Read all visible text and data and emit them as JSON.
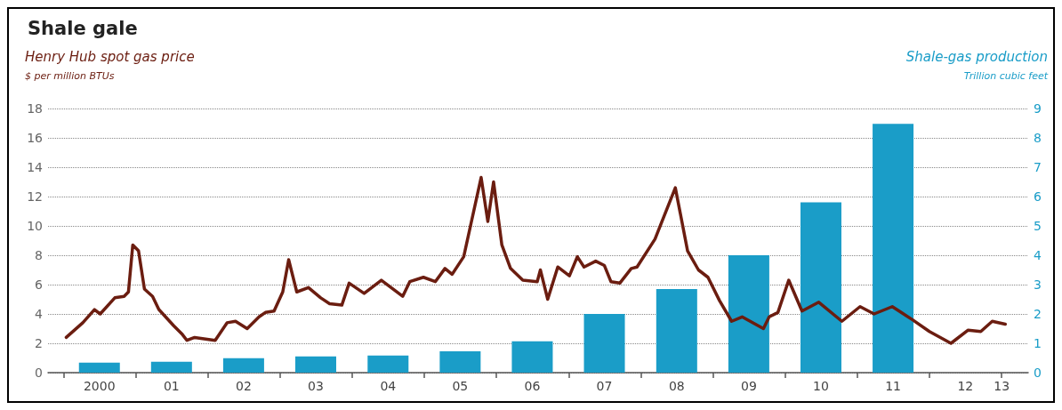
{
  "chart_data": {
    "type": "bar",
    "title": "Shale gale",
    "ylabel": "$ per million BTUs",
    "y2label": "Trillion cubic feet",
    "xlim": [
      "1999-10-15",
      "2013-05-15"
    ],
    "xticks": [
      {
        "value": "2000-01-01",
        "label": null
      },
      {
        "value": "2001-01-01",
        "label": null
      },
      {
        "value": "2002-01-01",
        "label": null
      },
      {
        "value": "2003-01-01",
        "label": null
      },
      {
        "value": "2004-01-01",
        "label": null
      },
      {
        "value": "2005-01-01",
        "label": null
      },
      {
        "value": "2006-01-01",
        "label": null
      },
      {
        "value": "2007-01-01",
        "label": null
      },
      {
        "value": "2008-01-01",
        "label": null
      },
      {
        "value": "2009-01-01",
        "label": null
      },
      {
        "value": "2010-01-01",
        "label": null
      },
      {
        "value": "2011-01-01",
        "label": null
      },
      {
        "value": "2012-01-01",
        "label": null
      },
      {
        "value": "2000-07-01",
        "label": "2000"
      },
      {
        "value": "2001-07-01",
        "label": "01"
      },
      {
        "value": "2002-07-01",
        "label": "02"
      },
      {
        "value": "2003-07-01",
        "label": "03"
      },
      {
        "value": "2004-07-01",
        "label": "04"
      },
      {
        "value": "2005-07-01",
        "label": "05"
      },
      {
        "value": "2006-07-01",
        "label": "06"
      },
      {
        "value": "2007-07-01",
        "label": "07"
      },
      {
        "value": "2008-07-01",
        "label": "08"
      },
      {
        "value": "2009-07-01",
        "label": "09"
      },
      {
        "value": "2010-07-01",
        "label": "10"
      },
      {
        "value": "2011-07-01",
        "label": "11"
      },
      {
        "value": "2012-07-01",
        "label": "12"
      },
      {
        "value": "2013-01-01",
        "label": "13"
      }
    ],
    "ylim": [
      0,
      18
    ],
    "yticks": [
      0,
      2,
      4,
      6,
      8,
      10,
      12,
      14,
      16,
      18
    ],
    "y2lim": [
      0,
      9
    ],
    "y2ticks": [
      0,
      1,
      2,
      3,
      4,
      5,
      6,
      7,
      8,
      9
    ],
    "grid": "y",
    "legend": false,
    "series": [
      {
        "name": "Shale-gas production",
        "axis": "y2",
        "color": "#1a9dc8",
        "x": [
          "2000-07-01",
          "2001-07-01",
          "2002-07-01",
          "2003-07-01",
          "2004-07-01",
          "2005-07-01",
          "2006-07-01",
          "2007-07-01",
          "2008-07-01",
          "2009-07-01",
          "2010-07-01",
          "2011-07-01"
        ],
        "values": [
          0.34,
          0.37,
          0.49,
          0.55,
          0.58,
          0.73,
          1.07,
          2.0,
          2.85,
          4.0,
          5.8,
          8.48
        ]
      },
      {
        "name": "Henry Hub spot gas price",
        "type": "line",
        "marker": "none",
        "line_style": "solid",
        "color": "#6b1d10",
        "x": [
          "2000-01-15",
          "2000-04-08",
          "2000-06-06",
          "2000-07-05",
          "2000-09-17",
          "2000-11-03",
          "2000-11-25",
          "2000-12-17",
          "2001-01-15",
          "2001-02-14",
          "2001-03-27",
          "2001-04-28",
          "2001-07-12",
          "2001-08-25",
          "2001-09-17",
          "2001-10-26",
          "2002-02-07",
          "2002-04-08",
          "2002-05-21",
          "2002-07-19",
          "2002-09-17",
          "2002-10-19",
          "2002-12-02",
          "2003-01-15",
          "2003-02-14",
          "2003-03-27",
          "2003-05-25",
          "2003-07-26",
          "2003-09-09",
          "2003-11-10",
          "2003-12-17",
          "2004-03-02",
          "2004-05-28",
          "2004-09-13",
          "2004-10-19",
          "2004-12-27",
          "2005-02-25",
          "2005-04-15",
          "2005-05-21",
          "2005-07-19",
          "2005-10-15",
          "2005-11-18",
          "2005-12-17",
          "2006-01-28",
          "2006-03-13",
          "2006-05-14",
          "2006-07-26",
          "2006-08-11",
          "2006-09-17",
          "2006-11-07",
          "2007-01-05",
          "2007-02-14",
          "2007-03-20",
          "2007-05-18",
          "2007-07-01",
          "2007-08-03",
          "2007-09-17",
          "2007-11-14",
          "2007-12-13",
          "2008-03-13",
          "2008-06-24",
          "2008-08-25",
          "2008-10-19",
          "2008-12-06",
          "2009-02-03",
          "2009-04-05",
          "2009-05-28",
          "2009-09-13",
          "2009-10-12",
          "2009-11-25",
          "2010-01-19",
          "2010-03-27",
          "2010-06-20",
          "2010-10-15",
          "2011-01-15",
          "2011-03-27",
          "2011-06-27",
          "2011-10-08",
          "2012-01-01",
          "2012-04-19",
          "2012-07-15",
          "2012-09-17",
          "2012-11-14",
          "2013-01-19"
        ],
        "values": [
          2.4,
          3.4,
          4.3,
          4.0,
          5.1,
          5.2,
          5.5,
          8.7,
          8.3,
          5.7,
          5.2,
          4.3,
          3.2,
          2.6,
          2.2,
          2.4,
          2.2,
          3.4,
          3.5,
          3.0,
          3.8,
          4.1,
          4.2,
          5.5,
          7.7,
          5.5,
          5.8,
          5.1,
          4.7,
          4.6,
          6.1,
          5.4,
          6.3,
          5.2,
          6.2,
          6.5,
          6.2,
          7.1,
          6.7,
          7.9,
          13.3,
          10.3,
          13.0,
          8.7,
          7.1,
          6.3,
          6.2,
          7.0,
          5.0,
          7.2,
          6.6,
          7.9,
          7.2,
          7.6,
          7.3,
          6.2,
          6.1,
          7.1,
          7.2,
          9.1,
          12.6,
          8.3,
          7.0,
          6.5,
          4.9,
          3.5,
          3.8,
          3.0,
          3.8,
          4.1,
          6.3,
          4.2,
          4.8,
          3.5,
          4.5,
          4.0,
          4.5,
          3.6,
          2.8,
          2.0,
          2.9,
          2.8,
          3.5,
          3.3
        ]
      }
    ]
  }
}
